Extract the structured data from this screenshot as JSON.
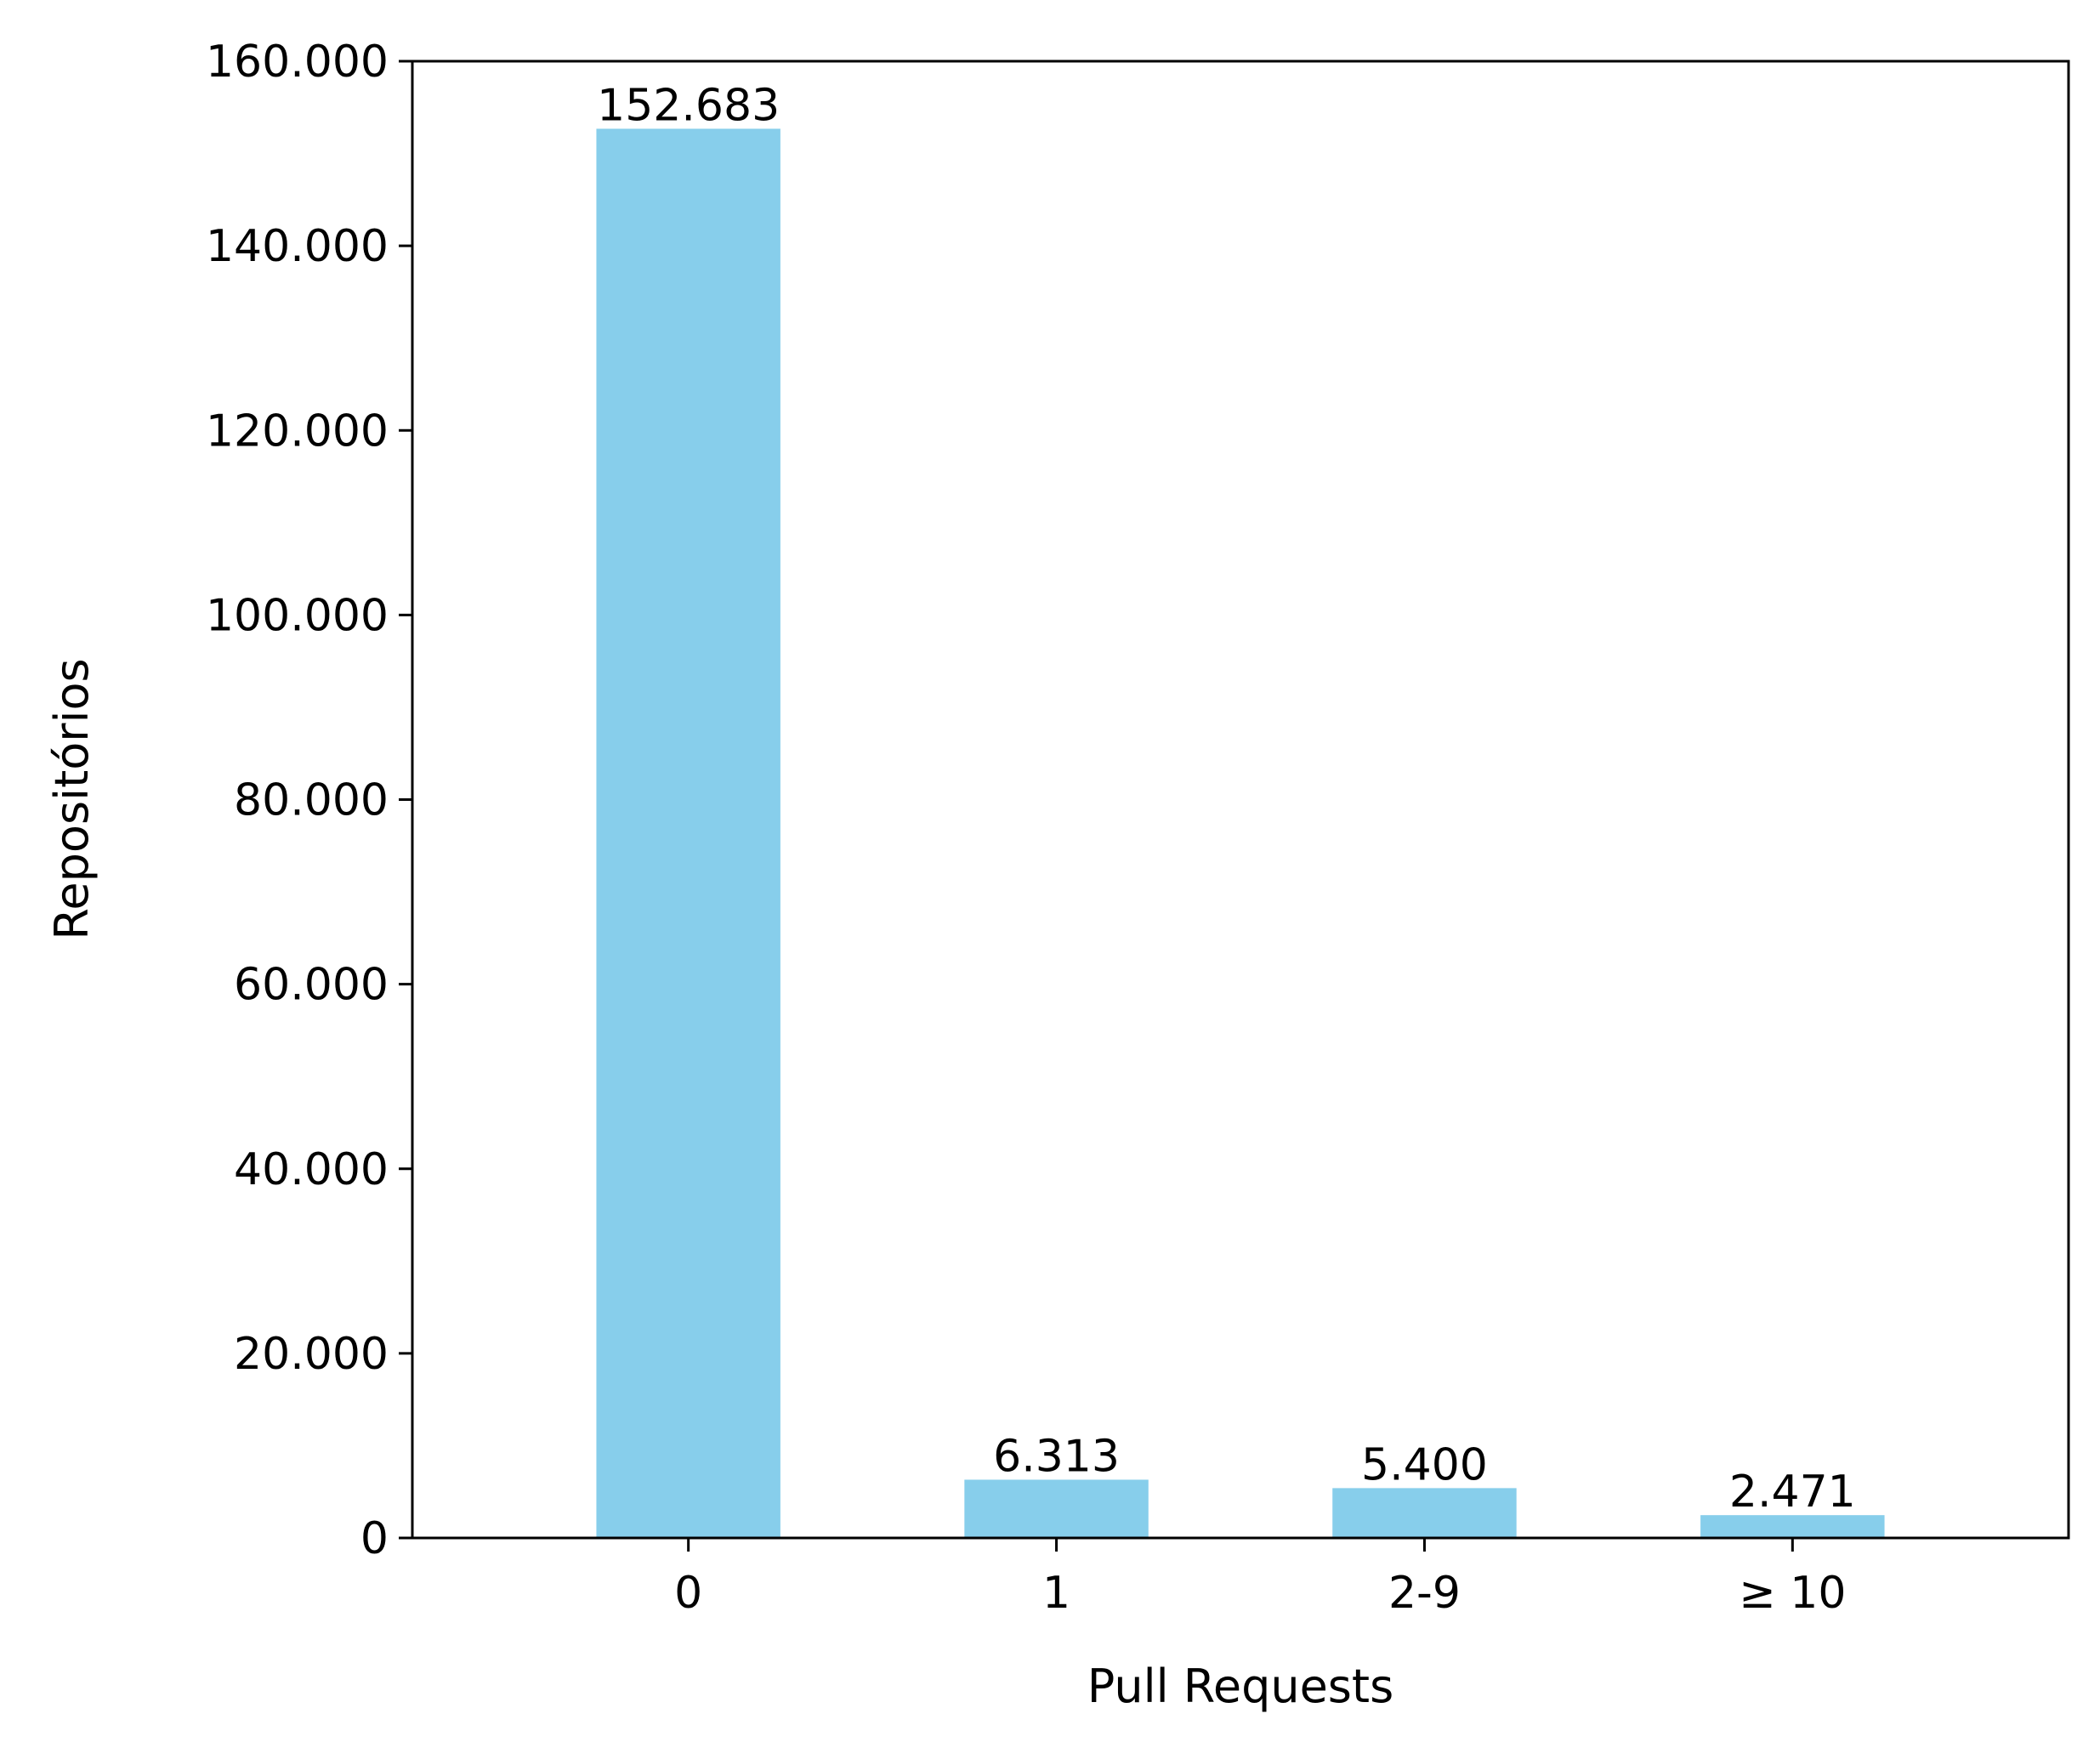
{
  "chart_data": {
    "type": "bar",
    "title": "",
    "xlabel": "Pull Requests",
    "ylabel": "Repositórios",
    "categories": [
      "0",
      "1",
      "2-9",
      "≥ 10"
    ],
    "values": [
      152683,
      6313,
      5400,
      2471
    ],
    "data_labels": [
      "152.683",
      "6.313",
      "5.400",
      "2.471"
    ],
    "ylim": [
      0,
      160000
    ],
    "yticks": [
      0,
      20000,
      40000,
      60000,
      80000,
      100000,
      120000,
      140000,
      160000
    ],
    "ytick_labels": [
      "0",
      "20.000",
      "40.000",
      "60.000",
      "80.000",
      "100.000",
      "120.000",
      "140.000",
      "160.000"
    ],
    "bar_color": "#87CEEB",
    "grid": false,
    "legend": "none"
  }
}
